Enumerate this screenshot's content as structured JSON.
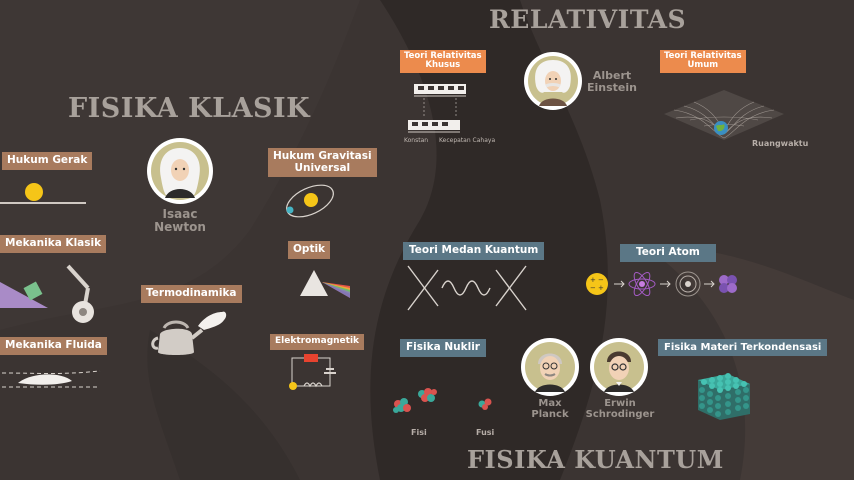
{
  "sections": {
    "classical": "FISIKA KLASIK",
    "relativity": "RELATIVITAS",
    "quantum": "FISIKA KUANTUM"
  },
  "classical": {
    "hukum_gerak": "Hukum Gerak",
    "mekanika_klasik": "Mekanika Klasik",
    "mekanika_fluida": "Mekanika Fluida",
    "termodinamika": "Termodinamika",
    "gravitasi_line1": "Hukum Gravitasi",
    "gravitasi_line2": "Universal",
    "optik": "Optik",
    "elektromagnetik": "Elektromagnetik",
    "newton_line1": "Isaac",
    "newton_line2": "Newton"
  },
  "relativity": {
    "khusus_line1": "Teori Relativitas",
    "khusus_line2": "Khusus",
    "umum_line1": "Teori Relativitas",
    "umum_line2": "Umum",
    "einstein_line1": "Albert",
    "einstein_line2": "Einstein",
    "konstan": "Konstan",
    "kecepatan_cahaya": "Kecepatan Cahaya",
    "ruangwaktu": "Ruangwaktu"
  },
  "quantum": {
    "medan": "Teori Medan Kuantum",
    "atom": "Teori Atom",
    "nuklir": "Fisika Nuklir",
    "materi": "Fisika Materi Terkondensasi",
    "planck_line1": "Max",
    "planck_line2": "Planck",
    "schrodinger_line1": "Erwin",
    "schrodinger_line2": "Schrodinger",
    "fisi": "Fisi",
    "fusi": "Fusi"
  },
  "icons": [
    "ball-icon",
    "incline-icon",
    "pendulum-wheel-icon",
    "kettle-icon",
    "orbit-icon",
    "prism-icon",
    "circuit-icon",
    "airfoil-icon",
    "train-icon",
    "spacetime-icon",
    "wave-icon",
    "atom-icon",
    "nucleus-icon",
    "lattice-icon"
  ]
}
